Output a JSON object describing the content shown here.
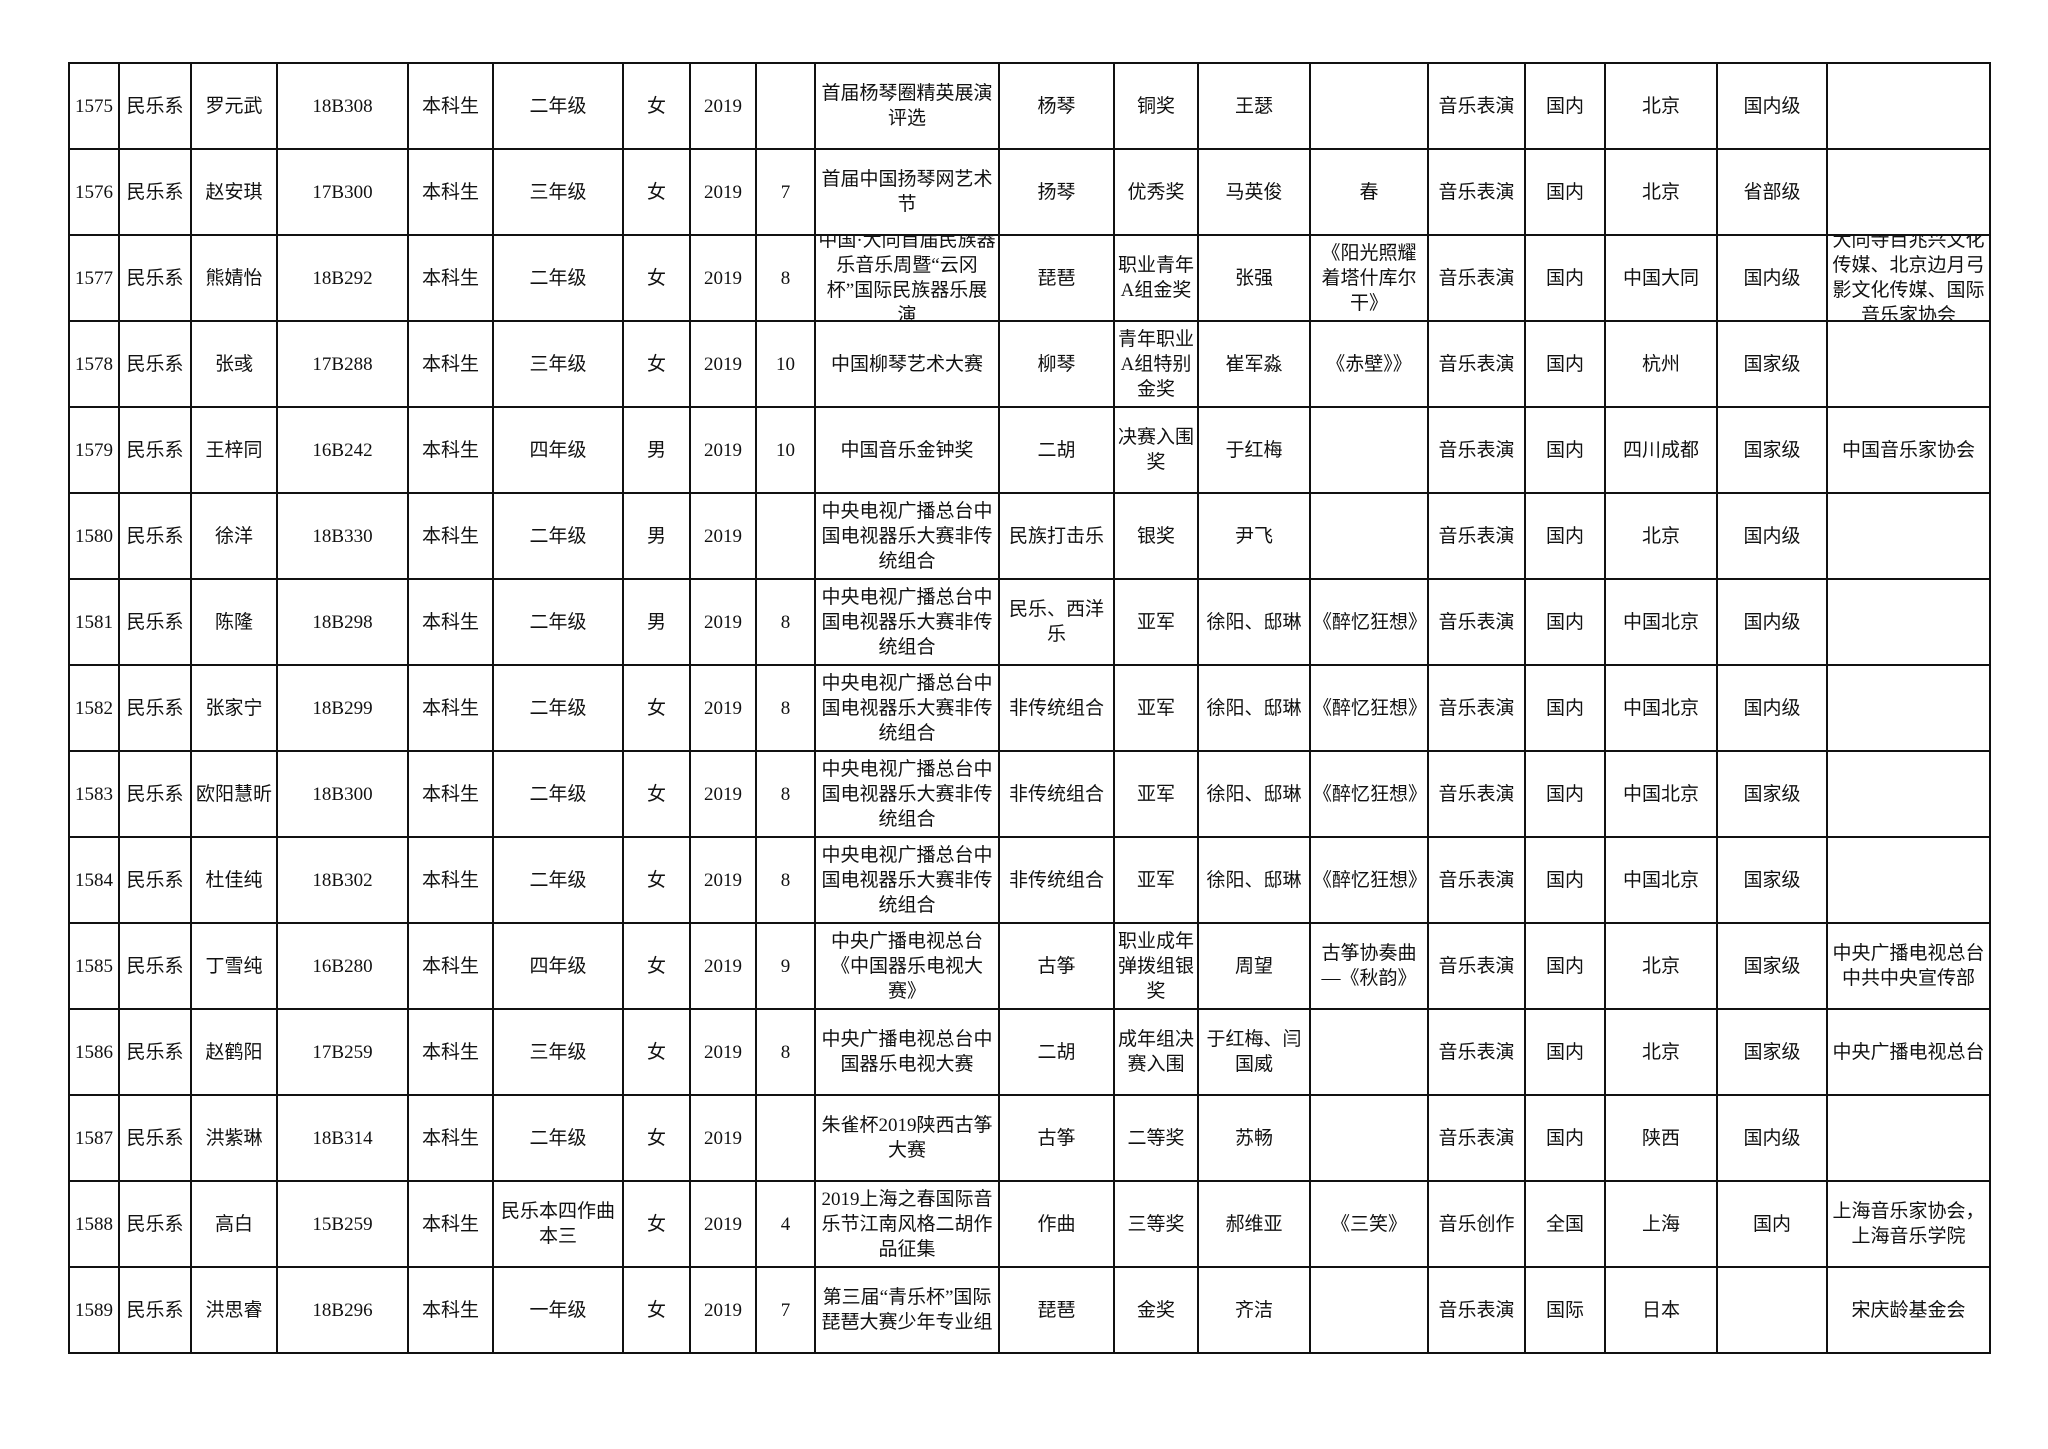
{
  "table": {
    "rows": [
      [
        "1575",
        "民乐系",
        "罗元武",
        "18B308",
        "本科生",
        "二年级",
        "女",
        "2019",
        "",
        "首届杨琴圈精英展演评选",
        "杨琴",
        "铜奖",
        "王瑟",
        "",
        "音乐表演",
        "国内",
        "北京",
        "国内级",
        ""
      ],
      [
        "1576",
        "民乐系",
        "赵安琪",
        "17B300",
        "本科生",
        "三年级",
        "女",
        "2019",
        "7",
        "首届中国扬琴网艺术节",
        "扬琴",
        "优秀奖",
        "马英俊",
        "春",
        "音乐表演",
        "国内",
        "北京",
        "省部级",
        ""
      ],
      [
        "1577",
        "民乐系",
        "熊婧怡",
        "18B292",
        "本科生",
        "二年级",
        "女",
        "2019",
        "8",
        "中国·大同首届民族器乐音乐周暨“云冈杯”国际民族器乐展演",
        "琵琶",
        "职业青年A组金奖",
        "张强",
        "《阳光照耀着塔什库尔干》",
        "音乐表演",
        "国内",
        "中国大同",
        "国内级",
        "大同寺目兆兴文化传媒、北京边月弓影文化传媒、国际音乐家协会"
      ],
      [
        "1578",
        "民乐系",
        "张彧",
        "17B288",
        "本科生",
        "三年级",
        "女",
        "2019",
        "10",
        "中国柳琴艺术大赛",
        "柳琴",
        "青年职业A组特别金奖",
        "崔军淼",
        "《赤壁》》",
        "音乐表演",
        "国内",
        "杭州",
        "国家级",
        ""
      ],
      [
        "1579",
        "民乐系",
        "王梓同",
        "16B242",
        "本科生",
        "四年级",
        "男",
        "2019",
        "10",
        "中国音乐金钟奖",
        "二胡",
        "决赛入围奖",
        "于红梅",
        "",
        "音乐表演",
        "国内",
        "四川成都",
        "国家级",
        "中国音乐家协会"
      ],
      [
        "1580",
        "民乐系",
        "徐洋",
        "18B330",
        "本科生",
        "二年级",
        "男",
        "2019",
        "",
        "中央电视广播总台中国电视器乐大赛非传统组合",
        "民族打击乐",
        "银奖",
        "尹飞",
        "",
        "音乐表演",
        "国内",
        "北京",
        "国内级",
        ""
      ],
      [
        "1581",
        "民乐系",
        "陈隆",
        "18B298",
        "本科生",
        "二年级",
        "男",
        "2019",
        "8",
        "中央电视广播总台中国电视器乐大赛非传统组合",
        "民乐、西洋乐",
        "亚军",
        "徐阳、邸琳",
        "《醉忆狂想》",
        "音乐表演",
        "国内",
        "中国北京",
        "国内级",
        ""
      ],
      [
        "1582",
        "民乐系",
        "张家宁",
        "18B299",
        "本科生",
        "二年级",
        "女",
        "2019",
        "8",
        "中央电视广播总台中国电视器乐大赛非传统组合",
        "非传统组合",
        "亚军",
        "徐阳、邸琳",
        "《醉忆狂想》",
        "音乐表演",
        "国内",
        "中国北京",
        "国内级",
        ""
      ],
      [
        "1583",
        "民乐系",
        "欧阳慧昕",
        "18B300",
        "本科生",
        "二年级",
        "女",
        "2019",
        "8",
        "中央电视广播总台中国电视器乐大赛非传统组合",
        "非传统组合",
        "亚军",
        "徐阳、邸琳",
        "《醉忆狂想》",
        "音乐表演",
        "国内",
        "中国北京",
        "国家级",
        ""
      ],
      [
        "1584",
        "民乐系",
        "杜佳纯",
        "18B302",
        "本科生",
        "二年级",
        "女",
        "2019",
        "8",
        "中央电视广播总台中国电视器乐大赛非传统组合",
        "非传统组合",
        "亚军",
        "徐阳、邸琳",
        "《醉忆狂想》",
        "音乐表演",
        "国内",
        "中国北京",
        "国家级",
        ""
      ],
      [
        "1585",
        "民乐系",
        "丁雪纯",
        "16B280",
        "本科生",
        "四年级",
        "女",
        "2019",
        "9",
        "中央广播电视总台《中国器乐电视大赛》",
        "古筝",
        "职业成年弹拨组银奖",
        "周望",
        "古筝协奏曲—《秋韵》",
        "音乐表演",
        "国内",
        "北京",
        "国家级",
        "中央广播电视总台中共中央宣传部"
      ],
      [
        "1586",
        "民乐系",
        "赵鹤阳",
        "17B259",
        "本科生",
        "三年级",
        "女",
        "2019",
        "8",
        "中央广播电视总台中国器乐电视大赛",
        "二胡",
        "成年组决赛入围",
        "于红梅、闫国威",
        "",
        "音乐表演",
        "国内",
        "北京",
        "国家级",
        "中央广播电视总台"
      ],
      [
        "1587",
        "民乐系",
        "洪紫琳",
        "18B314",
        "本科生",
        "二年级",
        "女",
        "2019",
        "",
        "朱雀杯2019陕西古筝大赛",
        "古筝",
        "二等奖",
        "苏畅",
        "",
        "音乐表演",
        "国内",
        "陕西",
        "国内级",
        ""
      ],
      [
        "1588",
        "民乐系",
        "高白",
        "15B259",
        "本科生",
        "民乐本四作曲本三",
        "女",
        "2019",
        "4",
        "2019上海之春国际音乐节江南风格二胡作品征集",
        "作曲",
        "三等奖",
        "郝维亚",
        "《三笑》",
        "音乐创作",
        "全国",
        "上海",
        "国内",
        "上海音乐家协会，上海音乐学院"
      ],
      [
        "1589",
        "民乐系",
        "洪思睿",
        "18B296",
        "本科生",
        "一年级",
        "女",
        "2019",
        "7",
        "第三届“青乐杯”国际琵琶大赛少年专业组",
        "琵琶",
        "金奖",
        "齐洁",
        "",
        "音乐表演",
        "国际",
        "日本",
        "",
        "宋庆龄基金会"
      ]
    ]
  }
}
